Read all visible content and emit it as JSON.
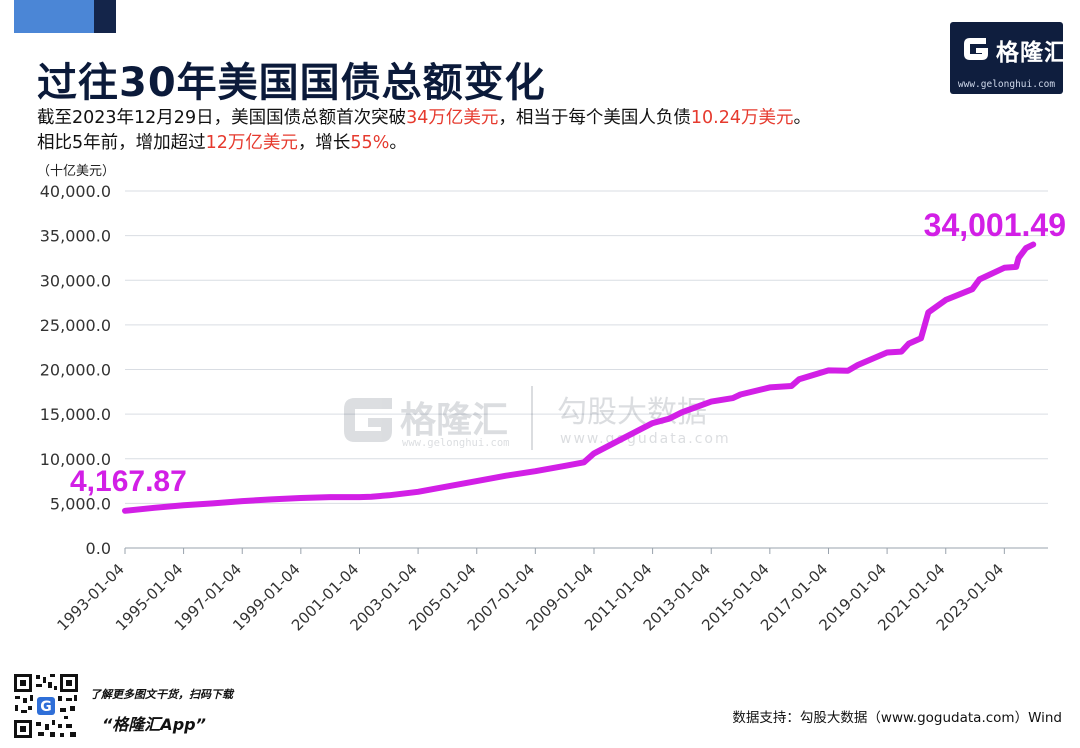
{
  "header": {
    "title": "过往30年美国国债总额变化",
    "subtitle_line1": [
      "截至2023年12月29日，美国国债总额首次突破",
      "34万亿美元",
      "，相当于每个美国人负债",
      "10.24万美元",
      "。"
    ],
    "subtitle_line2": [
      "相比5年前，增加超过",
      "12万亿美元",
      "，增长",
      "55%",
      "。"
    ],
    "highlight_color": "#e63a2e"
  },
  "logo": {
    "text": "格隆汇",
    "url": "www.gelonghui.com",
    "icon": "g-logo-icon"
  },
  "watermark": {
    "brand1": "格隆汇",
    "brand1_url": "www.gelonghui.com",
    "brand2": "勾股大数据",
    "brand2_url": "www.gogudata.com"
  },
  "footer": {
    "tagline": "了解更多图文干货，扫码下载",
    "app": "“格隆汇App”",
    "source": "数据支持：勾股大数据（www.gogudata.com）Wind"
  },
  "chart_data": {
    "type": "line",
    "title": "过往30年美国国债总额变化",
    "ylabel": "（十亿美元）",
    "xlabel": "",
    "ylim": [
      0,
      40000
    ],
    "yticks": [
      0,
      5000,
      10000,
      15000,
      20000,
      25000,
      30000,
      35000,
      40000
    ],
    "ytick_labels": [
      "0.0",
      "5,000.0",
      "10,000.0",
      "15,000.0",
      "20,000.0",
      "25,000.0",
      "30,000.0",
      "35,000.0",
      "40,000.0"
    ],
    "xlim": [
      "1993-01-04",
      "2024-07-01"
    ],
    "xticks": [
      "1993-01-04",
      "1995-01-04",
      "1997-01-04",
      "1999-01-04",
      "2001-01-04",
      "2003-01-04",
      "2005-01-04",
      "2007-01-04",
      "2009-01-04",
      "2011-01-04",
      "2013-01-04",
      "2015-01-04",
      "2017-01-04",
      "2019-01-04",
      "2021-01-04",
      "2023-01-04"
    ],
    "grid": "horizontal",
    "line_color": "#d21fe6",
    "label_color": "#d21fe6",
    "start_label": "4,167.87",
    "end_label": "34,001.49",
    "series": [
      {
        "points": [
          [
            "1993-01-04",
            4167.87
          ],
          [
            "1994-01-04",
            4500
          ],
          [
            "1995-01-04",
            4800
          ],
          [
            "1996-01-04",
            5000
          ],
          [
            "1997-01-04",
            5250
          ],
          [
            "1998-01-04",
            5450
          ],
          [
            "1999-01-04",
            5600
          ],
          [
            "2000-01-04",
            5700
          ],
          [
            "2001-01-04",
            5700
          ],
          [
            "2001-06-01",
            5750
          ],
          [
            "2002-01-04",
            5900
          ],
          [
            "2003-01-04",
            6300
          ],
          [
            "2004-01-04",
            6900
          ],
          [
            "2005-01-04",
            7500
          ],
          [
            "2006-01-04",
            8100
          ],
          [
            "2007-01-04",
            8600
          ],
          [
            "2008-01-04",
            9200
          ],
          [
            "2008-09-01",
            9600
          ],
          [
            "2009-01-04",
            10600
          ],
          [
            "2010-01-04",
            12300
          ],
          [
            "2011-01-04",
            14000
          ],
          [
            "2011-08-01",
            14500
          ],
          [
            "2012-01-04",
            15200
          ],
          [
            "2013-01-04",
            16400
          ],
          [
            "2013-10-01",
            16800
          ],
          [
            "2014-01-04",
            17200
          ],
          [
            "2015-01-04",
            18000
          ],
          [
            "2015-10-01",
            18150
          ],
          [
            "2016-01-04",
            18900
          ],
          [
            "2017-01-04",
            19900
          ],
          [
            "2017-09-01",
            19850
          ],
          [
            "2018-01-04",
            20500
          ],
          [
            "2019-01-04",
            21900
          ],
          [
            "2019-07-01",
            22000
          ],
          [
            "2019-10-01",
            22900
          ],
          [
            "2020-03-01",
            23500
          ],
          [
            "2020-06-01",
            26400
          ],
          [
            "2021-01-04",
            27800
          ],
          [
            "2021-12-01",
            29000
          ],
          [
            "2022-03-01",
            30100
          ],
          [
            "2023-01-04",
            31400
          ],
          [
            "2023-06-01",
            31500
          ],
          [
            "2023-07-01",
            32500
          ],
          [
            "2023-10-01",
            33600
          ],
          [
            "2023-12-29",
            34001.49
          ]
        ]
      }
    ]
  }
}
